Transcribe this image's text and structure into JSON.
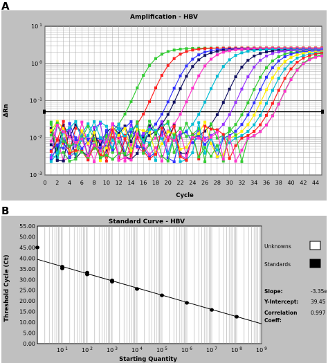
{
  "panels": {
    "a_letter": "A",
    "b_letter": "B"
  },
  "chart_data": [
    {
      "type": "line",
      "title": "Amplification - HBV",
      "xlabel": "Cycle",
      "ylabel": "ΔRn",
      "x_ticks": [
        "0",
        "2",
        "4",
        "6",
        "8",
        "10",
        "12",
        "14",
        "16",
        "18",
        "20",
        "22",
        "24",
        "26",
        "28",
        "30",
        "32",
        "34",
        "36",
        "38",
        "40",
        "42",
        "44"
      ],
      "y_ticks": [
        "10^-3",
        "10^-2",
        "10^-1",
        "10^0",
        "10^1"
      ],
      "xlim": [
        0,
        45
      ],
      "ylim_log10": [
        -3,
        1
      ],
      "y_scale": "log",
      "grid": true,
      "threshold_log10": -1.3,
      "series": [
        {
          "color": "#33cc33",
          "ct": 12,
          "plateau": 2.6
        },
        {
          "color": "#ff2020",
          "ct": 15,
          "plateau": 2.6
        },
        {
          "color": "#3333ff",
          "ct": 18,
          "plateau": 2.5
        },
        {
          "color": "#101060",
          "ct": 19,
          "plateau": 2.4
        },
        {
          "color": "#ff33cc",
          "ct": 21,
          "plateau": 2.5
        },
        {
          "color": "#00bcd4",
          "ct": 24,
          "plateau": 2.4
        },
        {
          "color": "#101060",
          "ct": 27,
          "plateau": 2.3
        },
        {
          "color": "#9933ff",
          "ct": 29,
          "plateau": 2.3
        },
        {
          "color": "#33cc33",
          "ct": 31,
          "plateau": 2.2
        },
        {
          "color": "#3333ff",
          "ct": 32,
          "plateau": 2.2
        },
        {
          "color": "#ffee00",
          "ct": 33,
          "plateau": 2.1
        },
        {
          "color": "#00bcd4",
          "ct": 34,
          "plateau": 2.0
        },
        {
          "color": "#ff2020",
          "ct": 35,
          "plateau": 2.0
        },
        {
          "color": "#33cc33",
          "ct": 36,
          "plateau": 1.9
        },
        {
          "color": "#ff33cc",
          "ct": 36,
          "plateau": 1.8
        }
      ]
    },
    {
      "type": "scatter",
      "title": "Standard Curve - HBV",
      "xlabel": "Starting Quantity",
      "ylabel": "Threshold Cycle (Ct)",
      "y_ticks": [
        "0.00",
        "5.00",
        "10.00",
        "15.00",
        "20.00",
        "25.00",
        "30.00",
        "35.00",
        "40.00",
        "45.00",
        "50.00",
        "55.00"
      ],
      "x_ticks": [
        "10^1",
        "10^2",
        "10^3",
        "10^4",
        "10^5",
        "10^6",
        "10^7",
        "10^8",
        "10^9"
      ],
      "ylim": [
        0,
        55
      ],
      "xlim_log10": [
        0,
        9
      ],
      "x_scale": "log",
      "points": [
        {
          "x_log10": 0.0,
          "y": 45.0
        },
        {
          "x_log10": 1.0,
          "y": 36.0
        },
        {
          "x_log10": 1.0,
          "y": 35.2
        },
        {
          "x_log10": 2.0,
          "y": 33.2
        },
        {
          "x_log10": 2.0,
          "y": 32.4
        },
        {
          "x_log10": 3.0,
          "y": 29.6
        },
        {
          "x_log10": 3.0,
          "y": 29.0
        },
        {
          "x_log10": 4.0,
          "y": 25.6
        },
        {
          "x_log10": 5.0,
          "y": 22.6
        },
        {
          "x_log10": 6.0,
          "y": 19.1
        },
        {
          "x_log10": 7.0,
          "y": 15.8
        },
        {
          "x_log10": 8.0,
          "y": 12.6
        }
      ],
      "fit": {
        "slope": -3.35,
        "intercept": 39.45
      },
      "legend": {
        "unknowns": "Unknowns",
        "standards": "Standards"
      },
      "stats": {
        "slope_label": "Slope:",
        "slope_value": "-3.35e",
        "intercept_label": "Y-Intercept:",
        "intercept_value": "39.45",
        "corr_label": "Correlation",
        "corr_label2": "Coeff:",
        "corr_value": "0.997"
      }
    }
  ]
}
